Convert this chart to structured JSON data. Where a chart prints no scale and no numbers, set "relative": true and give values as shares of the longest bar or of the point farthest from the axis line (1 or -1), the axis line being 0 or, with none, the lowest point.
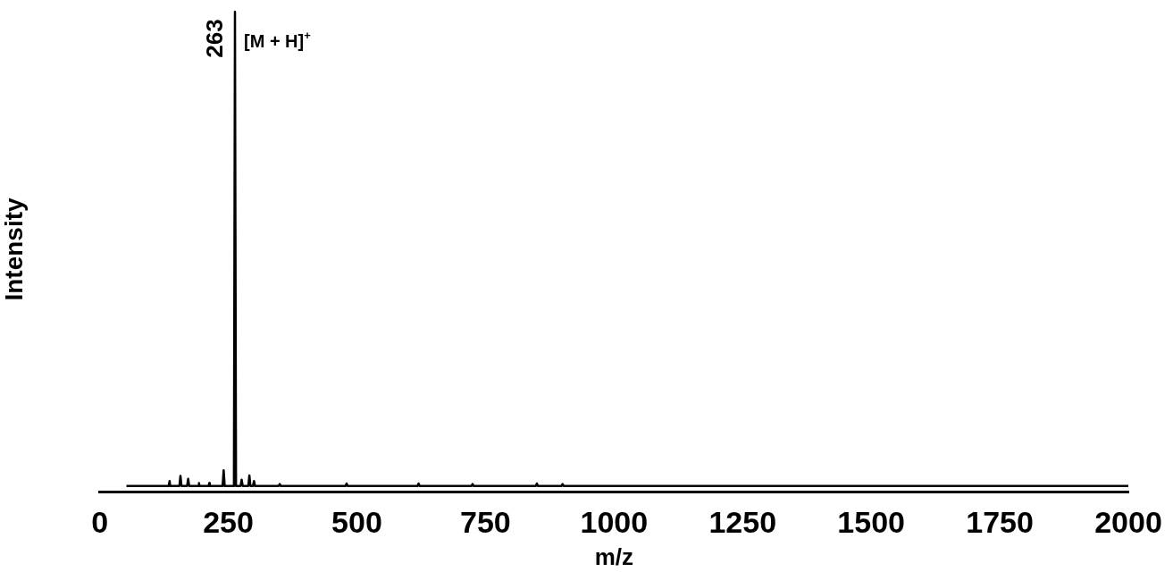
{
  "chart_data": {
    "type": "line",
    "xlabel": "m/z",
    "ylabel": "Intensity",
    "relative": true,
    "color": "#000000",
    "x": [
      52,
      120,
      134,
      136,
      137,
      155,
      157,
      159,
      170,
      172,
      174,
      192,
      193,
      194,
      212,
      213,
      214,
      239,
      241,
      243,
      261,
      263,
      265,
      274,
      276,
      278,
      289,
      291,
      293,
      298,
      300,
      302,
      348,
      350,
      352,
      478,
      480,
      482,
      618,
      620,
      622,
      723,
      725,
      727,
      848,
      850,
      852,
      898,
      900,
      902,
      2000
    ],
    "values": [
      0,
      0,
      0,
      0.01,
      0,
      0,
      0.021,
      0,
      0,
      0.015,
      0,
      0,
      0.006,
      0,
      0,
      0.006,
      0,
      0,
      0.033,
      0,
      0,
      1,
      0,
      0,
      0.013,
      0,
      0,
      0.022,
      0,
      0,
      0.01,
      0,
      0,
      0.004,
      0,
      0,
      0.005,
      0,
      0,
      0.005,
      0,
      0,
      0.004,
      0,
      0,
      0.005,
      0,
      0,
      0.004,
      0,
      0
    ],
    "xlim": [
      0,
      2000
    ],
    "xticks": [
      0,
      250,
      500,
      750,
      1000,
      1250,
      1500,
      1750,
      2000
    ],
    "marker": "none",
    "grid": false,
    "legend": false,
    "annotations": [
      "263",
      "[M + H]$^{+}$"
    ]
  }
}
